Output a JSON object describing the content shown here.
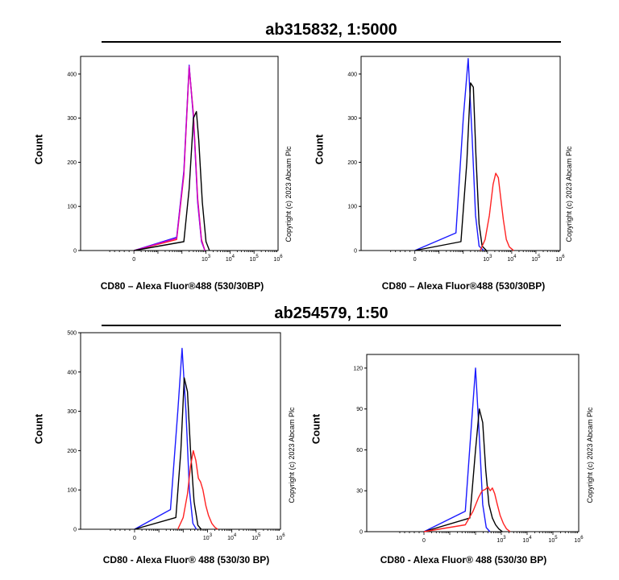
{
  "sections": [
    {
      "title": "ab315832, 1:5000"
    },
    {
      "title": "ab254579, 1:50"
    }
  ],
  "copyright": "Copyright (c) 2023 Abcam Plc",
  "chart_data": [
    {
      "type": "line",
      "ylabel": "Count",
      "xlabel": "CD80 – Alexa Fluor®488 (530/30BP)",
      "ylim": [
        0,
        440
      ],
      "yticks": [
        0,
        100,
        200,
        300,
        400
      ],
      "ytick_labels": [
        "0",
        "100",
        "200",
        "300",
        "400"
      ],
      "xscale": "log",
      "xticks": [
        1,
        1000,
        10000,
        100000,
        1000000
      ],
      "xtick_labels": [
        "0",
        "10^3",
        "10^4",
        "10^5",
        "10^6"
      ],
      "series": [
        {
          "color": "#1a1aff",
          "x": [
            1,
            60,
            120,
            200,
            300,
            450,
            650,
            900
          ],
          "y": [
            0,
            30,
            180,
            420,
            300,
            110,
            20,
            0
          ]
        },
        {
          "color": "#ff2222",
          "x": [
            1,
            60,
            120,
            200,
            300,
            450,
            650,
            900
          ],
          "y": [
            0,
            25,
            170,
            415,
            310,
            120,
            25,
            0
          ]
        },
        {
          "color": "#cc00cc",
          "x": [
            1,
            60,
            120,
            200,
            300,
            450,
            650,
            900
          ],
          "y": [
            0,
            28,
            175,
            418,
            305,
            115,
            22,
            0
          ]
        },
        {
          "color": "#000000",
          "x": [
            1,
            120,
            200,
            300,
            400,
            500,
            700,
            1000,
            1400
          ],
          "y": [
            0,
            20,
            140,
            300,
            315,
            250,
            110,
            20,
            0
          ]
        }
      ]
    },
    {
      "type": "line",
      "ylabel": "Count",
      "xlabel": "CD80 – Alexa Fluor®488 (530/30BP)",
      "ylim": [
        0,
        440
      ],
      "yticks": [
        0,
        100,
        200,
        300,
        400
      ],
      "ytick_labels": [
        "0",
        "100",
        "200",
        "300",
        "400"
      ],
      "xscale": "log",
      "xticks": [
        1,
        1000,
        10000,
        100000,
        1000000
      ],
      "xtick_labels": [
        "0",
        "10^3",
        "10^4",
        "10^5",
        "10^6"
      ],
      "series": [
        {
          "color": "#1a1aff",
          "x": [
            1,
            50,
            100,
            160,
            230,
            320,
            450,
            700
          ],
          "y": [
            0,
            40,
            300,
            435,
            260,
            80,
            10,
            0
          ]
        },
        {
          "color": "#000000",
          "x": [
            1,
            80,
            140,
            200,
            260,
            330,
            450,
            600,
            900
          ],
          "y": [
            0,
            20,
            200,
            380,
            370,
            220,
            60,
            10,
            0
          ]
        },
        {
          "color": "#ff2222",
          "x": [
            500,
            800,
            1200,
            1700,
            2200,
            2800,
            3500,
            4500,
            6000,
            8000,
            12000
          ],
          "y": [
            0,
            25,
            80,
            150,
            175,
            165,
            120,
            70,
            25,
            8,
            0
          ]
        }
      ]
    },
    {
      "type": "line",
      "ylabel": "Count",
      "xlabel": "CD80 - Alexa Fluor® 488 (530/30 BP)",
      "ylim": [
        0,
        500
      ],
      "yticks": [
        0,
        100,
        200,
        300,
        400,
        500
      ],
      "ytick_labels": [
        "0",
        "100",
        "200",
        "300",
        "400",
        "500"
      ],
      "xscale": "log",
      "xticks": [
        1,
        1000,
        10000,
        100000,
        1000000
      ],
      "xtick_labels": [
        "0",
        "10^3",
        "10^4",
        "10^5",
        "10^6"
      ],
      "series": [
        {
          "color": "#1a1aff",
          "x": [
            1,
            30,
            60,
            90,
            130,
            180,
            250,
            350
          ],
          "y": [
            0,
            50,
            300,
            460,
            300,
            100,
            15,
            0
          ]
        },
        {
          "color": "#000000",
          "x": [
            1,
            50,
            80,
            110,
            150,
            200,
            280,
            400,
            550
          ],
          "y": [
            0,
            30,
            200,
            385,
            350,
            200,
            70,
            10,
            0
          ]
        },
        {
          "color": "#ff2222",
          "x": [
            60,
            100,
            150,
            200,
            260,
            330,
            420,
            520,
            650,
            850,
            1100,
            1500,
            2000,
            2600
          ],
          "y": [
            0,
            30,
            90,
            160,
            200,
            175,
            130,
            120,
            100,
            60,
            35,
            15,
            5,
            0
          ]
        }
      ]
    },
    {
      "type": "line",
      "ylabel": "Count",
      "xlabel": "CD80 - Alexa Fluor® 488 (530/30 BP)",
      "ylim": [
        0,
        130
      ],
      "yticks": [
        0,
        30,
        60,
        90,
        120
      ],
      "ytick_labels": [
        "0",
        "30",
        "60",
        "90",
        "120"
      ],
      "xscale": "log",
      "xticks": [
        1,
        1000,
        10000,
        100000,
        1000000
      ],
      "xtick_labels": [
        "0",
        "10^3",
        "10^4",
        "10^5",
        "10^6"
      ],
      "series": [
        {
          "color": "#1a1aff",
          "x": [
            1,
            40,
            70,
            100,
            140,
            190,
            260,
            360
          ],
          "y": [
            0,
            15,
            80,
            120,
            70,
            20,
            3,
            0
          ]
        },
        {
          "color": "#000000",
          "x": [
            1,
            60,
            100,
            140,
            190,
            250,
            330,
            450,
            600,
            800,
            1100
          ],
          "y": [
            0,
            10,
            60,
            90,
            80,
            45,
            20,
            10,
            5,
            2,
            0
          ]
        },
        {
          "color": "#ff2222",
          "x": [
            1,
            40,
            80,
            130,
            180,
            240,
            300,
            370,
            450,
            550,
            700,
            900,
            1200,
            1600,
            2200
          ],
          "y": [
            0,
            5,
            15,
            25,
            30,
            31,
            33,
            30,
            32,
            28,
            20,
            12,
            6,
            2,
            0
          ]
        }
      ]
    }
  ]
}
